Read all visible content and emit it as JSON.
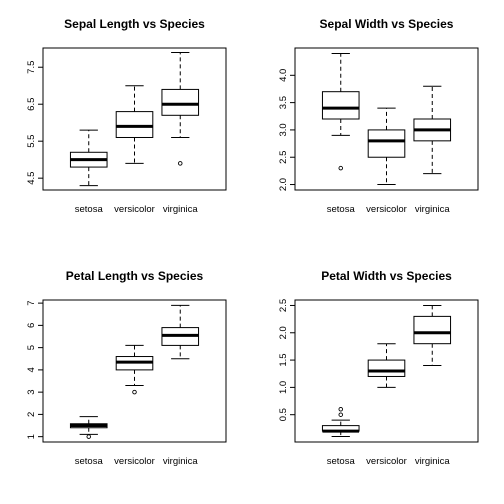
{
  "chart_data": [
    {
      "type": "boxplot",
      "title": "Sepal Length vs Species",
      "xlabel": "",
      "ylabel": "",
      "categories": [
        "setosa",
        "versicolor",
        "virginica"
      ],
      "yticks": [
        4.5,
        5.5,
        6.5,
        7.5
      ],
      "ytick_labels": [
        "4.5",
        "5.5",
        "6.5",
        "7.5"
      ],
      "ylim": [
        4.18,
        8.02
      ],
      "boxes": [
        {
          "whisker_low": 4.3,
          "q1": 4.8,
          "median": 5.0,
          "q3": 5.2,
          "whisker_high": 5.8,
          "outliers": []
        },
        {
          "whisker_low": 4.9,
          "q1": 5.6,
          "median": 5.9,
          "q3": 6.3,
          "whisker_high": 7.0,
          "outliers": []
        },
        {
          "whisker_low": 5.6,
          "q1": 6.2,
          "median": 6.5,
          "q3": 6.9,
          "whisker_high": 7.9,
          "outliers": [
            4.9
          ]
        }
      ],
      "grid": false
    },
    {
      "type": "boxplot",
      "title": "Sepal Width vs Species",
      "xlabel": "",
      "ylabel": "",
      "categories": [
        "setosa",
        "versicolor",
        "virginica"
      ],
      "yticks": [
        2.0,
        2.5,
        3.0,
        3.5,
        4.0
      ],
      "ytick_labels": [
        "2.0",
        "2.5",
        "3.0",
        "3.5",
        "4.0"
      ],
      "ylim": [
        1.9,
        4.5
      ],
      "boxes": [
        {
          "whisker_low": 2.9,
          "q1": 3.2,
          "median": 3.4,
          "q3": 3.7,
          "whisker_high": 4.4,
          "outliers": [
            2.3
          ]
        },
        {
          "whisker_low": 2.0,
          "q1": 2.5,
          "median": 2.8,
          "q3": 3.0,
          "whisker_high": 3.4,
          "outliers": []
        },
        {
          "whisker_low": 2.2,
          "q1": 2.8,
          "median": 3.0,
          "q3": 3.2,
          "whisker_high": 3.8,
          "outliers": []
        }
      ],
      "grid": false
    },
    {
      "type": "boxplot",
      "title": "Petal Length vs Species",
      "xlabel": "",
      "ylabel": "",
      "categories": [
        "setosa",
        "versicolor",
        "virginica"
      ],
      "yticks": [
        1,
        2,
        3,
        4,
        5,
        6,
        7
      ],
      "ytick_labels": [
        "1",
        "2",
        "3",
        "4",
        "5",
        "6",
        "7"
      ],
      "ylim": [
        0.76,
        7.14
      ],
      "boxes": [
        {
          "whisker_low": 1.1,
          "q1": 1.4,
          "median": 1.5,
          "q3": 1.58,
          "whisker_high": 1.9,
          "outliers": [
            1.0
          ]
        },
        {
          "whisker_low": 3.3,
          "q1": 4.0,
          "median": 4.35,
          "q3": 4.6,
          "whisker_high": 5.1,
          "outliers": [
            3.0
          ]
        },
        {
          "whisker_low": 4.5,
          "q1": 5.1,
          "median": 5.55,
          "q3": 5.9,
          "whisker_high": 6.9,
          "outliers": []
        }
      ],
      "grid": false
    },
    {
      "type": "boxplot",
      "title": "Petal Width vs Species",
      "xlabel": "",
      "ylabel": "",
      "categories": [
        "setosa",
        "versicolor",
        "virginica"
      ],
      "yticks": [
        0.5,
        1.0,
        1.5,
        2.0,
        2.5
      ],
      "ytick_labels": [
        "0.5",
        "1.0",
        "1.5",
        "2.0",
        "2.5"
      ],
      "ylim": [
        0.0,
        2.6
      ],
      "boxes": [
        {
          "whisker_low": 0.1,
          "q1": 0.2,
          "median": 0.2,
          "q3": 0.3,
          "whisker_high": 0.4,
          "outliers": [
            0.5,
            0.6
          ]
        },
        {
          "whisker_low": 1.0,
          "q1": 1.2,
          "median": 1.3,
          "q3": 1.5,
          "whisker_high": 1.8,
          "outliers": []
        },
        {
          "whisker_low": 1.4,
          "q1": 1.8,
          "median": 2.0,
          "q3": 2.3,
          "whisker_high": 2.5,
          "outliers": []
        }
      ],
      "grid": false
    }
  ]
}
